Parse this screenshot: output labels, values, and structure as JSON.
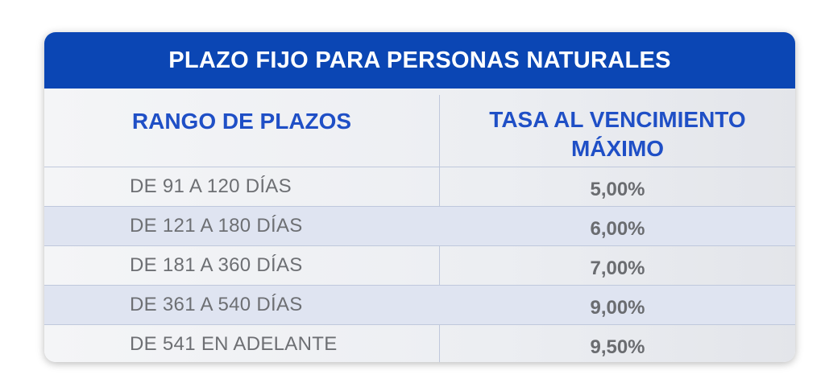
{
  "table": {
    "title": "PLAZO FIJO PARA PERSONAS NATURALES",
    "headers": {
      "range": "RANGO DE PLAZOS",
      "rate_line1": "TASA AL VENCIMIENTO",
      "rate_line2": "MÁXIMO"
    },
    "rows": [
      {
        "range": "DE 91 A 120 DÍAS",
        "rate": "5,00%"
      },
      {
        "range": "DE 121 A 180 DÍAS",
        "rate": "6,00%"
      },
      {
        "range": "DE 181 A 360 DÍAS",
        "rate": "7,00%"
      },
      {
        "range": "DE 361 A 540 DÍAS",
        "rate": "9,00%"
      },
      {
        "range": "DE 541 EN ADELANTE",
        "rate": "9,50%"
      }
    ]
  },
  "colors": {
    "title_background": "#0b46b4",
    "header_text": "#1f4fc6",
    "body_text": "#6d6f73",
    "alternate_row": "#dfe4f1"
  }
}
